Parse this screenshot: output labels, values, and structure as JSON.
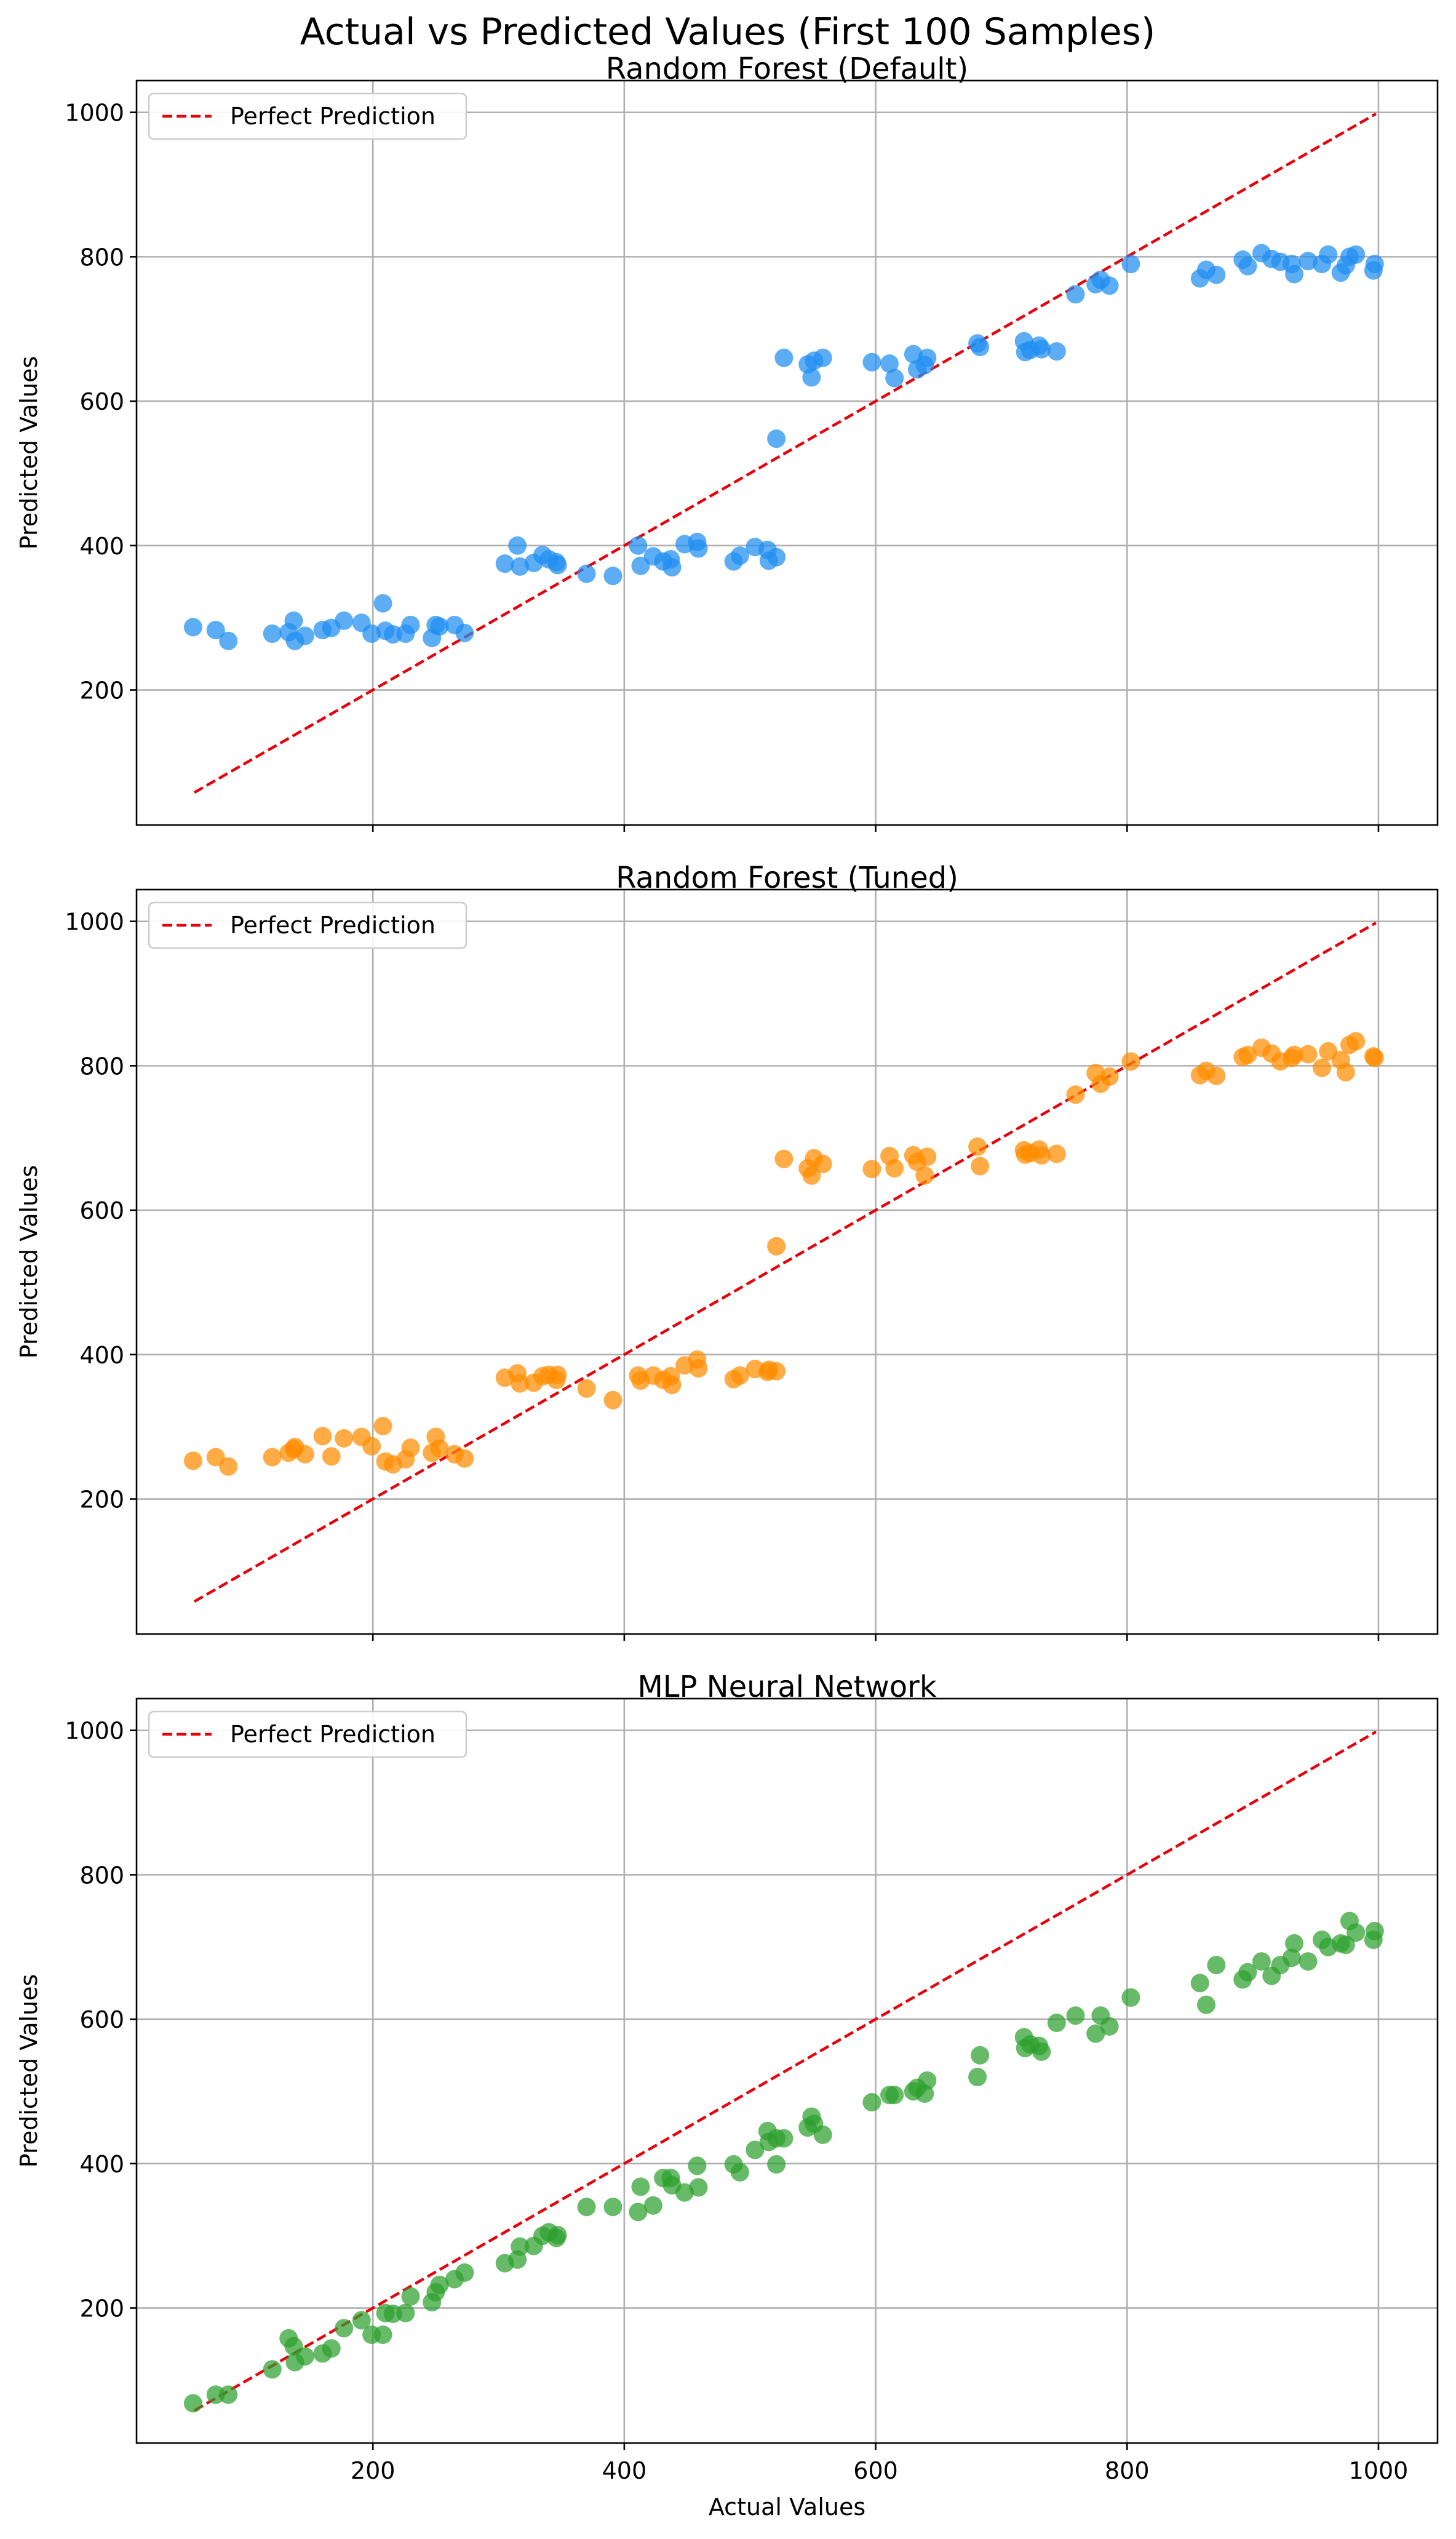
{
  "figure": {
    "suptitle": "Actual vs Predicted Values (First 100 Samples)"
  },
  "chart_data": [
    {
      "type": "scatter",
      "title": "Random Forest (Default)",
      "xlabel": "",
      "ylabel": "Predicted Values",
      "xlim": [
        12,
        1047
      ],
      "ylim": [
        13,
        1044
      ],
      "xticks": [
        200,
        400,
        600,
        800,
        1000
      ],
      "yticks": [
        200,
        400,
        600,
        800,
        1000
      ],
      "x_tick_labels_visible": false,
      "grid": true,
      "legend": {
        "position": "top-left",
        "entries": [
          "Perfect Prediction"
        ]
      },
      "reference_line": {
        "name": "Perfect Prediction",
        "x": [
          58,
          998
        ],
        "y": [
          58,
          998
        ],
        "color": "#e8000b",
        "style": "dashed"
      },
      "marker_color": "#1f8ef1",
      "points": [
        [
          57,
          287
        ],
        [
          75,
          283
        ],
        [
          85,
          268
        ],
        [
          120,
          278
        ],
        [
          133,
          280
        ],
        [
          137,
          296
        ],
        [
          138,
          268
        ],
        [
          146,
          275
        ],
        [
          160,
          283
        ],
        [
          167,
          286
        ],
        [
          177,
          296
        ],
        [
          191,
          293
        ],
        [
          199,
          278
        ],
        [
          208,
          320
        ],
        [
          210,
          282
        ],
        [
          216,
          277
        ],
        [
          226,
          278
        ],
        [
          230,
          290
        ],
        [
          247,
          272
        ],
        [
          250,
          290
        ],
        [
          253,
          288
        ],
        [
          265,
          290
        ],
        [
          273,
          279
        ],
        [
          305,
          375
        ],
        [
          315,
          400
        ],
        [
          317,
          371
        ],
        [
          328,
          376
        ],
        [
          335,
          387
        ],
        [
          340,
          381
        ],
        [
          346,
          377
        ],
        [
          347,
          373
        ],
        [
          370,
          361
        ],
        [
          391,
          358
        ],
        [
          411,
          400
        ],
        [
          413,
          372
        ],
        [
          423,
          385
        ],
        [
          431,
          378
        ],
        [
          437,
          381
        ],
        [
          438,
          370
        ],
        [
          448,
          402
        ],
        [
          458,
          405
        ],
        [
          459,
          396
        ],
        [
          487,
          378
        ],
        [
          492,
          386
        ],
        [
          504,
          398
        ],
        [
          514,
          394
        ],
        [
          515,
          379
        ],
        [
          521,
          384
        ],
        [
          521,
          548
        ],
        [
          527,
          660
        ],
        [
          546,
          651
        ],
        [
          549,
          633
        ],
        [
          551,
          656
        ],
        [
          558,
          660
        ],
        [
          597,
          654
        ],
        [
          611,
          652
        ],
        [
          615,
          632
        ],
        [
          630,
          665
        ],
        [
          633,
          644
        ],
        [
          639,
          650
        ],
        [
          641,
          660
        ],
        [
          681,
          680
        ],
        [
          683,
          675
        ],
        [
          718,
          683
        ],
        [
          719,
          668
        ],
        [
          723,
          671
        ],
        [
          730,
          677
        ],
        [
          732,
          672
        ],
        [
          744,
          669
        ],
        [
          759,
          748
        ],
        [
          775,
          762
        ],
        [
          779,
          768
        ],
        [
          786,
          760
        ],
        [
          803,
          790
        ],
        [
          858,
          770
        ],
        [
          863,
          782
        ],
        [
          871,
          775
        ],
        [
          892,
          796
        ],
        [
          896,
          787
        ],
        [
          907,
          805
        ],
        [
          915,
          797
        ],
        [
          922,
          793
        ],
        [
          931,
          790
        ],
        [
          933,
          776
        ],
        [
          944,
          794
        ],
        [
          955,
          790
        ],
        [
          960,
          803
        ],
        [
          970,
          778
        ],
        [
          974,
          788
        ],
        [
          977,
          800
        ],
        [
          982,
          803
        ],
        [
          996,
          781
        ],
        [
          997,
          790
        ]
      ]
    },
    {
      "type": "scatter",
      "title": "Random Forest (Tuned)",
      "xlabel": "",
      "ylabel": "Predicted Values",
      "xlim": [
        12,
        1047
      ],
      "ylim": [
        13,
        1044
      ],
      "xticks": [
        200,
        400,
        600,
        800,
        1000
      ],
      "yticks": [
        200,
        400,
        600,
        800,
        1000
      ],
      "x_tick_labels_visible": false,
      "grid": true,
      "legend": {
        "position": "top-left",
        "entries": [
          "Perfect Prediction"
        ]
      },
      "reference_line": {
        "name": "Perfect Prediction",
        "x": [
          58,
          998
        ],
        "y": [
          58,
          998
        ],
        "color": "#e8000b",
        "style": "dashed"
      },
      "marker_color": "#ff8c00",
      "points": [
        [
          57,
          253
        ],
        [
          75,
          258
        ],
        [
          85,
          245
        ],
        [
          120,
          258
        ],
        [
          133,
          264
        ],
        [
          137,
          269
        ],
        [
          138,
          272
        ],
        [
          146,
          262
        ],
        [
          160,
          287
        ],
        [
          167,
          259
        ],
        [
          177,
          284
        ],
        [
          191,
          286
        ],
        [
          199,
          273
        ],
        [
          208,
          301
        ],
        [
          210,
          252
        ],
        [
          216,
          248
        ],
        [
          226,
          255
        ],
        [
          230,
          271
        ],
        [
          247,
          264
        ],
        [
          250,
          286
        ],
        [
          253,
          270
        ],
        [
          265,
          262
        ],
        [
          273,
          256
        ],
        [
          305,
          368
        ],
        [
          315,
          374
        ],
        [
          317,
          360
        ],
        [
          328,
          361
        ],
        [
          335,
          370
        ],
        [
          340,
          372
        ],
        [
          346,
          365
        ],
        [
          347,
          372
        ],
        [
          370,
          353
        ],
        [
          391,
          337
        ],
        [
          411,
          371
        ],
        [
          413,
          364
        ],
        [
          423,
          371
        ],
        [
          431,
          365
        ],
        [
          437,
          370
        ],
        [
          438,
          358
        ],
        [
          448,
          385
        ],
        [
          458,
          393
        ],
        [
          459,
          381
        ],
        [
          487,
          366
        ],
        [
          492,
          371
        ],
        [
          504,
          380
        ],
        [
          514,
          376
        ],
        [
          515,
          379
        ],
        [
          521,
          377
        ],
        [
          521,
          550
        ],
        [
          527,
          671
        ],
        [
          546,
          658
        ],
        [
          549,
          648
        ],
        [
          551,
          672
        ],
        [
          558,
          664
        ],
        [
          597,
          657
        ],
        [
          611,
          675
        ],
        [
          615,
          658
        ],
        [
          630,
          676
        ],
        [
          633,
          667
        ],
        [
          639,
          648
        ],
        [
          641,
          674
        ],
        [
          681,
          688
        ],
        [
          683,
          661
        ],
        [
          718,
          683
        ],
        [
          719,
          677
        ],
        [
          723,
          679
        ],
        [
          730,
          684
        ],
        [
          732,
          676
        ],
        [
          744,
          678
        ],
        [
          759,
          760
        ],
        [
          775,
          790
        ],
        [
          779,
          775
        ],
        [
          786,
          785
        ],
        [
          803,
          806
        ],
        [
          858,
          787
        ],
        [
          863,
          793
        ],
        [
          871,
          786
        ],
        [
          892,
          812
        ],
        [
          896,
          815
        ],
        [
          907,
          825
        ],
        [
          915,
          817
        ],
        [
          922,
          806
        ],
        [
          931,
          811
        ],
        [
          933,
          815
        ],
        [
          944,
          816
        ],
        [
          955,
          797
        ],
        [
          960,
          820
        ],
        [
          970,
          808
        ],
        [
          974,
          791
        ],
        [
          977,
          829
        ],
        [
          982,
          834
        ],
        [
          996,
          813
        ],
        [
          997,
          811
        ]
      ]
    },
    {
      "type": "scatter",
      "title": "MLP Neural Network",
      "xlabel": "Actual Values",
      "ylabel": "Predicted Values",
      "xlim": [
        12,
        1047
      ],
      "ylim": [
        13,
        1044
      ],
      "xticks": [
        200,
        400,
        600,
        800,
        1000
      ],
      "yticks": [
        200,
        400,
        600,
        800,
        1000
      ],
      "x_tick_labels_visible": true,
      "grid": true,
      "legend": {
        "position": "top-left",
        "entries": [
          "Perfect Prediction"
        ]
      },
      "reference_line": {
        "name": "Perfect Prediction",
        "x": [
          58,
          998
        ],
        "y": [
          58,
          998
        ],
        "color": "#e8000b",
        "style": "dashed"
      },
      "marker_color": "#2ca02c",
      "points": [
        [
          57,
          68
        ],
        [
          75,
          80
        ],
        [
          85,
          80
        ],
        [
          120,
          115
        ],
        [
          133,
          158
        ],
        [
          137,
          147
        ],
        [
          138,
          125
        ],
        [
          146,
          133
        ],
        [
          160,
          137
        ],
        [
          167,
          144
        ],
        [
          177,
          172
        ],
        [
          191,
          183
        ],
        [
          199,
          163
        ],
        [
          208,
          163
        ],
        [
          210,
          193
        ],
        [
          216,
          192
        ],
        [
          226,
          193
        ],
        [
          230,
          216
        ],
        [
          247,
          208
        ],
        [
          250,
          222
        ],
        [
          253,
          232
        ],
        [
          265,
          240
        ],
        [
          273,
          249
        ],
        [
          305,
          262
        ],
        [
          315,
          267
        ],
        [
          317,
          285
        ],
        [
          328,
          286
        ],
        [
          335,
          300
        ],
        [
          340,
          305
        ],
        [
          346,
          297
        ],
        [
          347,
          301
        ],
        [
          370,
          340
        ],
        [
          391,
          340
        ],
        [
          411,
          333
        ],
        [
          413,
          368
        ],
        [
          423,
          342
        ],
        [
          431,
          380
        ],
        [
          437,
          380
        ],
        [
          438,
          370
        ],
        [
          448,
          360
        ],
        [
          458,
          397
        ],
        [
          459,
          367
        ],
        [
          487,
          399
        ],
        [
          492,
          388
        ],
        [
          504,
          419
        ],
        [
          514,
          445
        ],
        [
          515,
          430
        ],
        [
          521,
          399
        ],
        [
          521,
          435
        ],
        [
          527,
          435
        ],
        [
          546,
          450
        ],
        [
          549,
          465
        ],
        [
          551,
          455
        ],
        [
          558,
          440
        ],
        [
          597,
          485
        ],
        [
          611,
          495
        ],
        [
          615,
          495
        ],
        [
          630,
          500
        ],
        [
          633,
          505
        ],
        [
          639,
          497
        ],
        [
          641,
          515
        ],
        [
          681,
          520
        ],
        [
          683,
          550
        ],
        [
          718,
          575
        ],
        [
          719,
          560
        ],
        [
          723,
          565
        ],
        [
          730,
          563
        ],
        [
          732,
          555
        ],
        [
          744,
          595
        ],
        [
          759,
          605
        ],
        [
          775,
          580
        ],
        [
          779,
          605
        ],
        [
          786,
          590
        ],
        [
          803,
          630
        ],
        [
          858,
          650
        ],
        [
          863,
          620
        ],
        [
          871,
          675
        ],
        [
          892,
          655
        ],
        [
          896,
          665
        ],
        [
          907,
          680
        ],
        [
          915,
          660
        ],
        [
          922,
          675
        ],
        [
          931,
          685
        ],
        [
          933,
          705
        ],
        [
          944,
          680
        ],
        [
          955,
          710
        ],
        [
          960,
          700
        ],
        [
          970,
          705
        ],
        [
          974,
          703
        ],
        [
          977,
          736
        ],
        [
          982,
          720
        ],
        [
          996,
          710
        ],
        [
          997,
          722
        ]
      ]
    }
  ]
}
